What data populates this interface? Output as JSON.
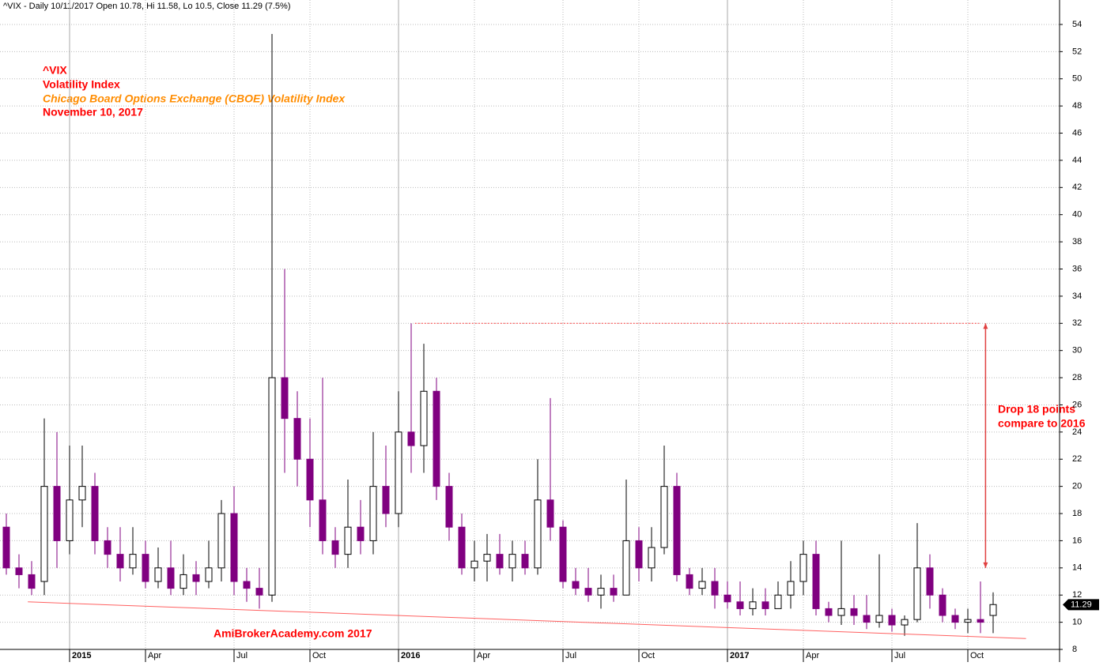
{
  "chart_data": {
    "type": "candlestick",
    "header": "^VIX - Daily 10/11/2017 Open 10.78, Hi 11.58, Lo 10.5, Close 11.29 (7.5%)",
    "title_lines": [
      "^VIX",
      "Volatility Index",
      "Chicago Board Options Exchange (CBOE) Volatility Index",
      "November 10, 2017"
    ],
    "watermark": "AmiBrokerAcademy.com  2017",
    "annotation": [
      "Drop 18 points",
      "compare to 2016"
    ],
    "last_label": 11.29,
    "categories": [
      null,
      null,
      null,
      null,
      null,
      "2015",
      null,
      null,
      null,
      null,
      null,
      "Apr",
      null,
      null,
      null,
      null,
      null,
      null,
      "Jul",
      null,
      null,
      null,
      null,
      null,
      "Oct",
      null,
      null,
      null,
      null,
      null,
      null,
      "2016",
      null,
      null,
      null,
      null,
      null,
      "Apr",
      null,
      null,
      null,
      null,
      null,
      null,
      "Jul",
      null,
      null,
      null,
      null,
      null,
      "Oct",
      null,
      null,
      null,
      null,
      null,
      null,
      "2017",
      null,
      null,
      null,
      null,
      null,
      "Apr",
      null,
      null,
      null,
      null,
      null,
      null,
      "Jul",
      null,
      null,
      null,
      null,
      null,
      "Oct",
      null,
      null
    ],
    "open": [
      17,
      14,
      13.5,
      13,
      20,
      16,
      19,
      20,
      16,
      15,
      14,
      15,
      13,
      14,
      12.5,
      13.5,
      13,
      14,
      18,
      13,
      12.5,
      12,
      28,
      25,
      22,
      19,
      16,
      15,
      17,
      16,
      20,
      18,
      24,
      23,
      27,
      20,
      17,
      14,
      14.5,
      15,
      14,
      15,
      14,
      19,
      17,
      13,
      12.5,
      12,
      12.5,
      12,
      16,
      14,
      15.5,
      20,
      13.5,
      12.5,
      13,
      12,
      11.5,
      11,
      11.5,
      11,
      12,
      13,
      15,
      11,
      10.5,
      11,
      10.5,
      10,
      10.5,
      9.8,
      10.2,
      14,
      12,
      10.5,
      10,
      10.2,
      10.5
    ],
    "high": [
      18,
      15,
      14.5,
      25,
      24,
      23,
      23,
      21,
      17,
      17,
      17,
      16,
      15.5,
      16,
      15,
      14.5,
      16,
      19,
      20,
      14,
      14,
      53.3,
      36,
      27,
      25,
      28,
      17,
      20.5,
      19,
      24,
      23,
      27,
      32,
      30.5,
      28,
      21,
      18,
      16,
      16.5,
      16.5,
      16,
      16,
      22,
      26.5,
      17.5,
      14,
      14,
      13.5,
      13.5,
      20.5,
      17,
      17,
      23,
      21,
      14,
      14,
      14,
      13,
      13,
      12.5,
      12.5,
      13,
      14.5,
      16,
      16,
      11.5,
      16,
      12,
      12,
      15,
      11,
      10.5,
      17.3,
      15,
      12.5,
      11,
      11,
      13,
      12.2
    ],
    "low": [
      13.5,
      12.5,
      12,
      12,
      14,
      15,
      17,
      15,
      14,
      13,
      13.5,
      12.5,
      12.5,
      12,
      12,
      12,
      12.5,
      13,
      12,
      11.5,
      11,
      11.5,
      21,
      20,
      17,
      15,
      14,
      14,
      15,
      15,
      17,
      17,
      21,
      21,
      19,
      16,
      13.5,
      13,
      13,
      13.5,
      13,
      13.5,
      13.5,
      16,
      12.5,
      12,
      11.5,
      11,
      11.5,
      12,
      13,
      13,
      15,
      13,
      12,
      12,
      11,
      11,
      10.5,
      10.5,
      10.5,
      11,
      11,
      12,
      10.5,
      10,
      9.8,
      9.8,
      9.5,
      9.6,
      9.3,
      9,
      10,
      11,
      10,
      9.5,
      9.2,
      9.2,
      9.2
    ],
    "close": [
      14,
      13.5,
      12.5,
      20,
      16,
      19,
      20,
      16,
      15,
      14,
      15,
      13,
      14,
      12.5,
      13.5,
      13,
      14,
      18,
      13,
      12.5,
      12,
      28,
      25,
      22,
      19,
      16,
      15,
      17,
      16,
      20,
      18,
      24,
      23,
      27,
      20,
      17,
      14,
      14.5,
      15,
      14,
      15,
      14,
      19,
      17,
      13,
      12.5,
      12,
      12.5,
      12,
      16,
      14,
      15.5,
      20,
      13.5,
      12.5,
      13,
      12,
      11.5,
      11,
      11.5,
      11,
      12,
      13,
      15,
      11,
      10.5,
      11,
      10.5,
      10,
      10.5,
      9.8,
      10.2,
      14,
      12,
      10.5,
      10,
      10.2,
      10,
      11.3
    ],
    "up_color": "#000000",
    "down_color": "#800080",
    "trendline": {
      "x": [
        1.7,
        80.6
      ],
      "y": [
        11.5,
        8.8
      ],
      "color": "#ff6060"
    },
    "reference_line": {
      "x": [
        32.3,
        76.9
      ],
      "y": 32,
      "color": "#ff4040"
    },
    "arrow": {
      "x": 77.4,
      "y": [
        32,
        14
      ],
      "color": "#e04040"
    },
    "ylim": [
      8,
      55.8
    ],
    "yticks": [
      8,
      10,
      12,
      14,
      16,
      18,
      20,
      22,
      24,
      26,
      28,
      30,
      32,
      34,
      36,
      38,
      40,
      42,
      44,
      46,
      48,
      50,
      52,
      54
    ],
    "grid": true
  }
}
